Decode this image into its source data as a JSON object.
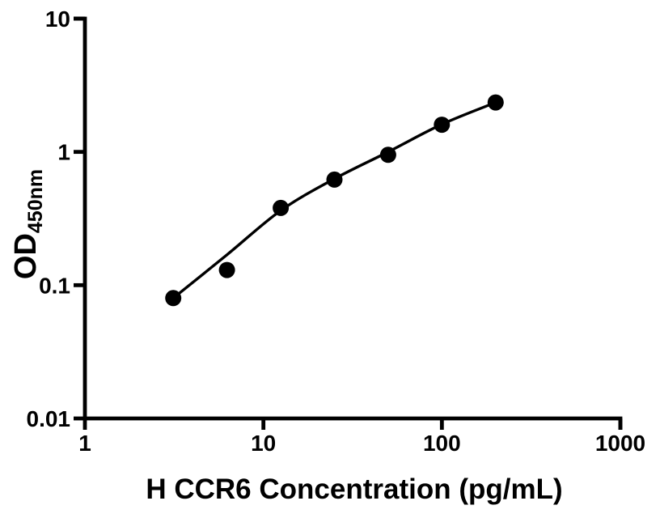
{
  "figure": {
    "background_color": "#ffffff",
    "ink_color": "#000000"
  },
  "chart_data": {
    "type": "scatter",
    "title": "",
    "xlabel": "H CCR6 Concentration (pg/mL)",
    "ylabel": "OD",
    "ylabel_subscript": "450nm",
    "x_scale": "log",
    "y_scale": "log",
    "xlim": [
      1,
      1000
    ],
    "ylim": [
      0.01,
      10
    ],
    "x_tick_values": [
      1,
      10,
      100,
      1000
    ],
    "x_tick_labels": [
      "1",
      "10",
      "100",
      "1000"
    ],
    "y_tick_values": [
      0.01,
      0.1,
      1,
      10
    ],
    "y_tick_labels": [
      "0.01",
      "0.1",
      "1",
      "10"
    ],
    "grid": false,
    "legend": false,
    "points": {
      "x": [
        3.125,
        6.25,
        12.5,
        25,
        50,
        100,
        200
      ],
      "y": [
        0.08,
        0.13,
        0.38,
        0.62,
        0.95,
        1.6,
        2.35
      ]
    },
    "trend_curve": {
      "description": "fitted standard curve drawn through the points",
      "x": [
        3.125,
        6.25,
        12.5,
        25,
        50,
        100,
        200
      ],
      "y": [
        0.08,
        0.169,
        0.363,
        0.628,
        1.0,
        1.61,
        2.35
      ]
    },
    "marker": {
      "shape": "circle",
      "color": "#000000"
    },
    "line_color": "#000000",
    "axis_color": "#000000"
  }
}
